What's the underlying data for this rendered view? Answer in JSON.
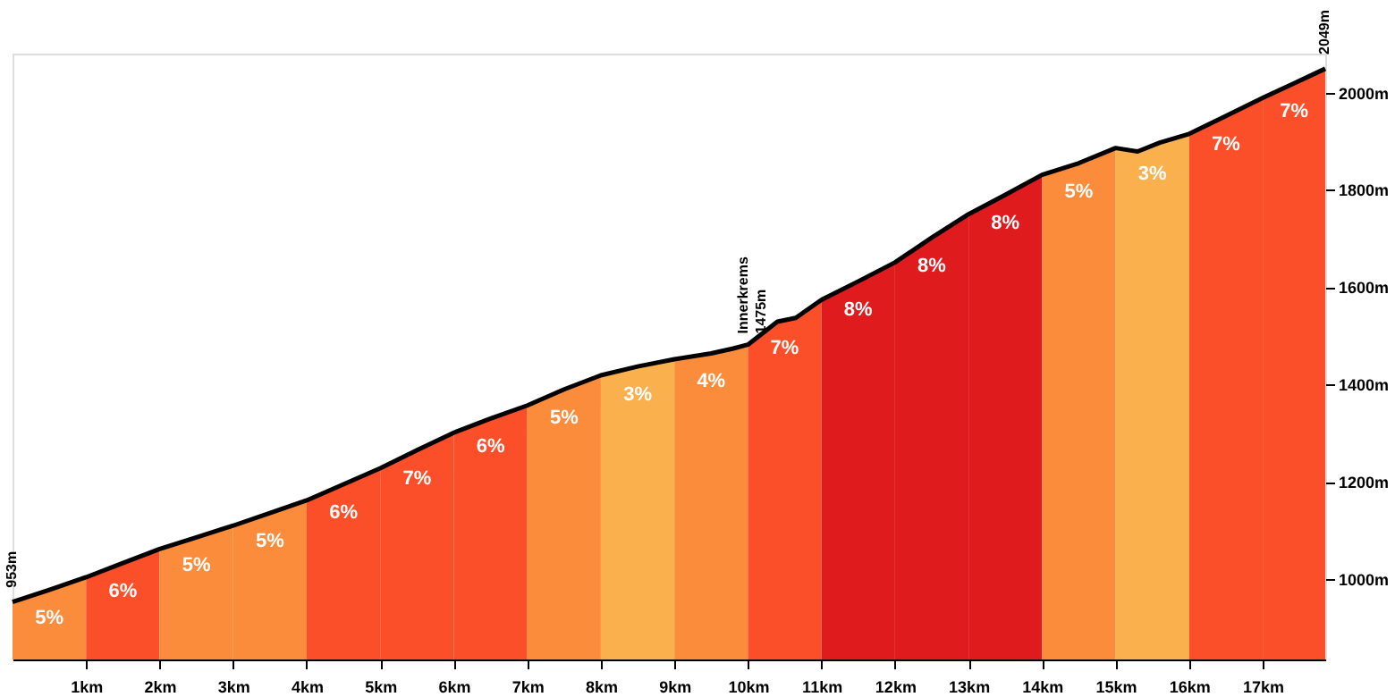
{
  "chart_data": {
    "type": "area",
    "xlim": [
      0,
      17.85
    ],
    "ylim": [
      835,
      2080
    ],
    "xticks": [
      {
        "value": 1,
        "label": "1km"
      },
      {
        "value": 2,
        "label": "2km"
      },
      {
        "value": 3,
        "label": "3km"
      },
      {
        "value": 4,
        "label": "4km"
      },
      {
        "value": 5,
        "label": "5km"
      },
      {
        "value": 6,
        "label": "6km"
      },
      {
        "value": 7,
        "label": "7km"
      },
      {
        "value": 8,
        "label": "8km"
      },
      {
        "value": 9,
        "label": "9km"
      },
      {
        "value": 10,
        "label": "10km"
      },
      {
        "value": 11,
        "label": "11km"
      },
      {
        "value": 12,
        "label": "12km"
      },
      {
        "value": 13,
        "label": "13km"
      },
      {
        "value": 14,
        "label": "14km"
      },
      {
        "value": 15,
        "label": "15km"
      },
      {
        "value": 16,
        "label": "16km"
      },
      {
        "value": 17,
        "label": "17km"
      }
    ],
    "yticks": [
      {
        "value": 1000,
        "label": "1000m"
      },
      {
        "value": 1200,
        "label": "1200m"
      },
      {
        "value": 1400,
        "label": "1400m"
      },
      {
        "value": 1600,
        "label": "1600m"
      },
      {
        "value": 1800,
        "label": "1800m"
      },
      {
        "value": 2000,
        "label": "2000m"
      }
    ],
    "grid": false,
    "series": [
      {
        "color": "#fb8c3c",
        "x": [
          0,
          0.5,
          1
        ],
        "values": [
          953,
          978,
          1004
        ]
      },
      {
        "color": "#fb4f2a",
        "x": [
          1,
          1.5,
          2
        ],
        "values": [
          1004,
          1033,
          1062
        ]
      },
      {
        "color": "#fb8c3c",
        "x": [
          2,
          2.5,
          3
        ],
        "values": [
          1062,
          1086,
          1110
        ]
      },
      {
        "color": "#fb8c3c",
        "x": [
          3,
          3.5,
          4
        ],
        "values": [
          1110,
          1136,
          1162
        ]
      },
      {
        "color": "#fb4f2a",
        "x": [
          4,
          4.5,
          5
        ],
        "values": [
          1162,
          1195,
          1228
        ]
      },
      {
        "color": "#fb4f2a",
        "x": [
          5,
          5.5,
          6
        ],
        "values": [
          1228,
          1265,
          1301
        ]
      },
      {
        "color": "#fb4f2a",
        "x": [
          6,
          6.5,
          7
        ],
        "values": [
          1301,
          1330,
          1357
        ]
      },
      {
        "color": "#fb8c3c",
        "x": [
          7,
          7.5,
          8
        ],
        "values": [
          1357,
          1390,
          1419
        ]
      },
      {
        "color": "#fbb04e",
        "x": [
          8,
          8.5,
          9
        ],
        "values": [
          1419,
          1437,
          1452
        ]
      },
      {
        "color": "#fb8c3c",
        "x": [
          9,
          9.5,
          9.8,
          10
        ],
        "values": [
          1452,
          1464,
          1474,
          1482
        ]
      },
      {
        "color": "#fb4f2a",
        "x": [
          10,
          10.4,
          10.65,
          11
        ],
        "values": [
          1482,
          1529,
          1537,
          1574
        ]
      },
      {
        "color": "#e01b1e",
        "x": [
          11,
          11.5,
          12
        ],
        "values": [
          1574,
          1612,
          1651
        ]
      },
      {
        "color": "#e01b1e",
        "x": [
          12,
          12.5,
          13
        ],
        "values": [
          1651,
          1702,
          1750
        ]
      },
      {
        "color": "#e01b1e",
        "x": [
          13,
          13.5,
          14
        ],
        "values": [
          1750,
          1790,
          1831
        ]
      },
      {
        "color": "#fb8c3c",
        "x": [
          14,
          14.5,
          15
        ],
        "values": [
          1831,
          1855,
          1886
        ]
      },
      {
        "color": "#fbb04e",
        "x": [
          15,
          15.3,
          15.6,
          16
        ],
        "values": [
          1886,
          1879,
          1897,
          1915
        ]
      },
      {
        "color": "#fb4f2a",
        "x": [
          16,
          16.5,
          17
        ],
        "values": [
          1915,
          1952,
          1989
        ]
      },
      {
        "color": "#fb4f2a",
        "x": [
          17,
          17.4,
          17.85
        ],
        "values": [
          1989,
          2017,
          2049
        ]
      },
      {
        "type": "line",
        "color": "#000000",
        "x": [
          0,
          0.5,
          1,
          1.5,
          2,
          2.5,
          3,
          3.5,
          4,
          4.5,
          5,
          5.5,
          6,
          6.5,
          7,
          7.5,
          8,
          8.5,
          9,
          9.5,
          9.8,
          10,
          10.4,
          10.65,
          11,
          11.5,
          12,
          12.5,
          13,
          13.5,
          14,
          14.5,
          15,
          15.3,
          15.6,
          16,
          16.5,
          17,
          17.4,
          17.85
        ],
        "values": [
          953,
          978,
          1004,
          1033,
          1062,
          1086,
          1110,
          1136,
          1162,
          1195,
          1228,
          1265,
          1301,
          1330,
          1357,
          1390,
          1419,
          1437,
          1452,
          1464,
          1474,
          1482,
          1529,
          1537,
          1574,
          1612,
          1651,
          1702,
          1750,
          1790,
          1831,
          1855,
          1886,
          1879,
          1897,
          1915,
          1952,
          1989,
          2017,
          2049
        ]
      }
    ],
    "annotations": [
      {
        "text": "953m",
        "x": 0,
        "y": 953
      },
      {
        "text": "Innerkrems\n1475m",
        "x": 9.95,
        "y": 1475
      },
      {
        "text": "2049m",
        "x": 17.85,
        "y": 2049
      },
      "5%",
      "6%",
      "5%",
      "5%",
      "6%",
      "7%",
      "6%",
      "5%",
      "3%",
      "4%",
      "7%",
      "8%",
      "8%",
      "8%",
      "5%",
      "3%",
      "7%",
      "7%"
    ]
  }
}
